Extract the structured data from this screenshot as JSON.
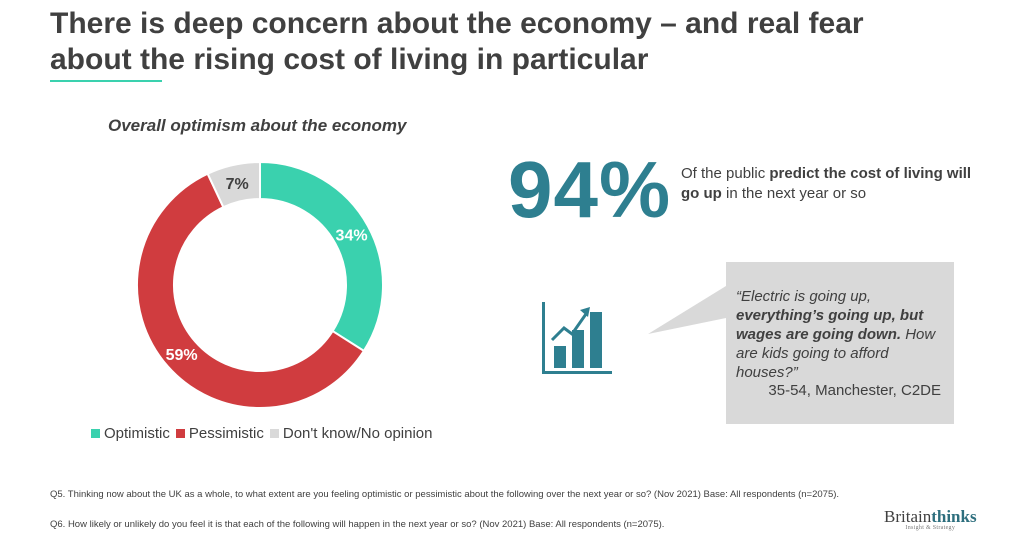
{
  "slide": {
    "title_line1": "There is deep concern about the economy – and real fear",
    "title_line2": "about the rising cost of living in particular"
  },
  "chart_data": {
    "type": "pie",
    "donut": true,
    "title": "Overall optimism about the economy",
    "categories": [
      "Optimistic",
      "Pessimistic",
      "Don't know/No opinion"
    ],
    "values": [
      34,
      59,
      7
    ],
    "labels": [
      "34%",
      "59%",
      "7%"
    ],
    "colors": [
      "#3ad1ae",
      "#d03c3f",
      "#d9d9d9"
    ],
    "label_colors": [
      "#ffffff",
      "#ffffff",
      "#404040"
    ],
    "legend_position": "bottom"
  },
  "stat": {
    "value": "94%",
    "text_pre": "Of the public ",
    "text_bold": "predict the cost of living will go up",
    "text_post": " in the next year or so"
  },
  "quote": {
    "part1": "“Electric is going up, ",
    "part_bold": "everything’s going up, but wages are going down.",
    "part2": " How are kids going to afford houses?”",
    "attribution": "35-54, Manchester, C2DE"
  },
  "icons": {
    "stat_icon": "rising-bar-chart-icon",
    "icon_color": "#2e7f90",
    "bubble_color": "#d9d9d9"
  },
  "footnotes": {
    "q5": "Q5. Thinking now about the UK as a whole, to what extent are you feeling optimistic or pessimistic about the following over the next year or so? (Nov 2021) Base: All respondents (n=2075).",
    "q6": "Q6. How likely or unlikely do you feel it is that each of the following will happen in the next year or so? (Nov 2021) Base: All respondents (n=2075)."
  },
  "brand": {
    "name_part1": "Britain",
    "name_part2": "thinks",
    "tagline": "Insight & Strategy"
  }
}
